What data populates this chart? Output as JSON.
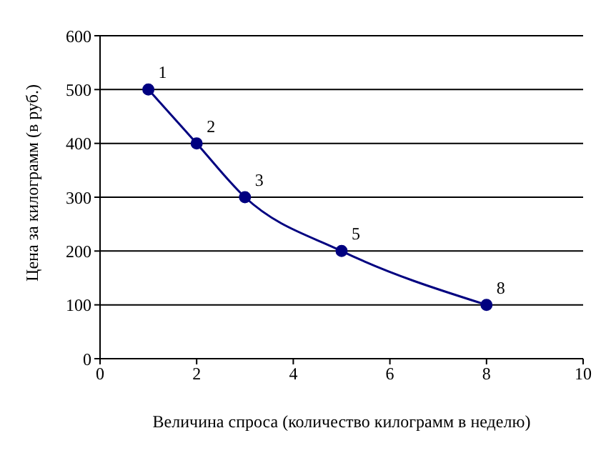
{
  "chart_data": {
    "type": "line",
    "xlabel": "Величина спроса (количество килограмм в неделю)",
    "ylabel": "Цена за килограмм (в руб.)",
    "x": [
      1,
      2,
      3,
      5,
      8
    ],
    "series": [
      {
        "color": "#000080",
        "values": [
          500,
          400,
          300,
          200,
          100
        ]
      }
    ],
    "xlim": [
      0,
      10
    ],
    "xticks": [
      0,
      2,
      4,
      6,
      8,
      10
    ],
    "ylim": [
      0,
      600
    ],
    "yticks": [
      0,
      100,
      200,
      300,
      400,
      500,
      600
    ],
    "grid": "y",
    "legend": false,
    "marker": "circle",
    "line_style": "solid",
    "annotations": [
      {
        "text": "1",
        "x": 1,
        "y": 500
      },
      {
        "text": "2",
        "x": 2,
        "y": 400
      },
      {
        "text": "3",
        "x": 3,
        "y": 300
      },
      {
        "text": "5",
        "x": 5,
        "y": 200
      },
      {
        "text": "8",
        "x": 8,
        "y": 100
      }
    ]
  }
}
